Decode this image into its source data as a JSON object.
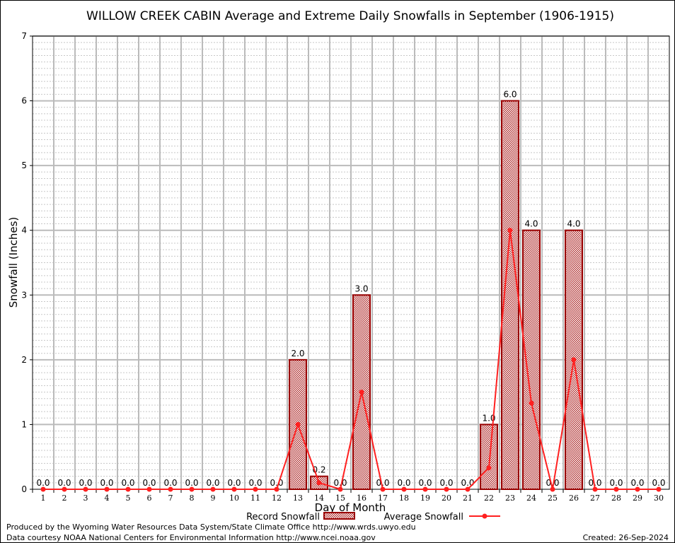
{
  "chart_data": {
    "type": "bar",
    "title": "WILLOW CREEK CABIN Average and Extreme Daily Snowfalls in September (1906-1915)",
    "xlabel": "Day of Month",
    "ylabel": "Snowfall (Inches)",
    "ylim": [
      0,
      7
    ],
    "yticks": [
      "0",
      "1",
      "2",
      "3",
      "4",
      "5",
      "6",
      "7"
    ],
    "categories": [
      "1",
      "2",
      "3",
      "4",
      "5",
      "6",
      "7",
      "8",
      "9",
      "10",
      "11",
      "12",
      "13",
      "14",
      "15",
      "16",
      "17",
      "18",
      "19",
      "20",
      "21",
      "22",
      "23",
      "24",
      "25",
      "26",
      "27",
      "28",
      "29",
      "30"
    ],
    "series": [
      {
        "name": "Record Snowfall",
        "type": "bar",
        "color": "#990000",
        "values": [
          0,
          0,
          0,
          0,
          0,
          0,
          0,
          0,
          0,
          0,
          0,
          0,
          2.0,
          0.2,
          0,
          3.0,
          0,
          0,
          0,
          0,
          0,
          1.0,
          6.0,
          4.0,
          0,
          4.0,
          0,
          0,
          0,
          0
        ],
        "labels": [
          "0.0",
          "0.0",
          "0.0",
          "0.0",
          "0.0",
          "0.0",
          "0.0",
          "0.0",
          "0.0",
          "0.0",
          "0.0",
          "0.0",
          "2.0",
          "0.2",
          "0.0",
          "3.0",
          "0.0",
          "0.0",
          "0.0",
          "0.0",
          "0.0",
          "1.0",
          "6.0",
          "4.0",
          "0.0",
          "4.0",
          "0.0",
          "0.0",
          "0.0",
          "0.0"
        ]
      },
      {
        "name": "Average Snowfall",
        "type": "line",
        "color": "#ff2020",
        "values": [
          0,
          0,
          0,
          0,
          0,
          0,
          0,
          0,
          0,
          0,
          0,
          0,
          1.0,
          0.1,
          0,
          1.5,
          0,
          0,
          0,
          0,
          0,
          0.33,
          4.0,
          1.33,
          0,
          2.0,
          0,
          0,
          0,
          0
        ]
      }
    ],
    "grid": true,
    "legend": "bottom-center"
  },
  "footer": {
    "produced": "Produced by the Wyoming Water Resources Data System/State Climate Office http://www.wrds.uwyo.edu",
    "courtesy": "Data courtesy NOAA National Centers for Environmental Information http://www.ncei.noaa.gov",
    "created": "Created: 26-Sep-2024"
  }
}
